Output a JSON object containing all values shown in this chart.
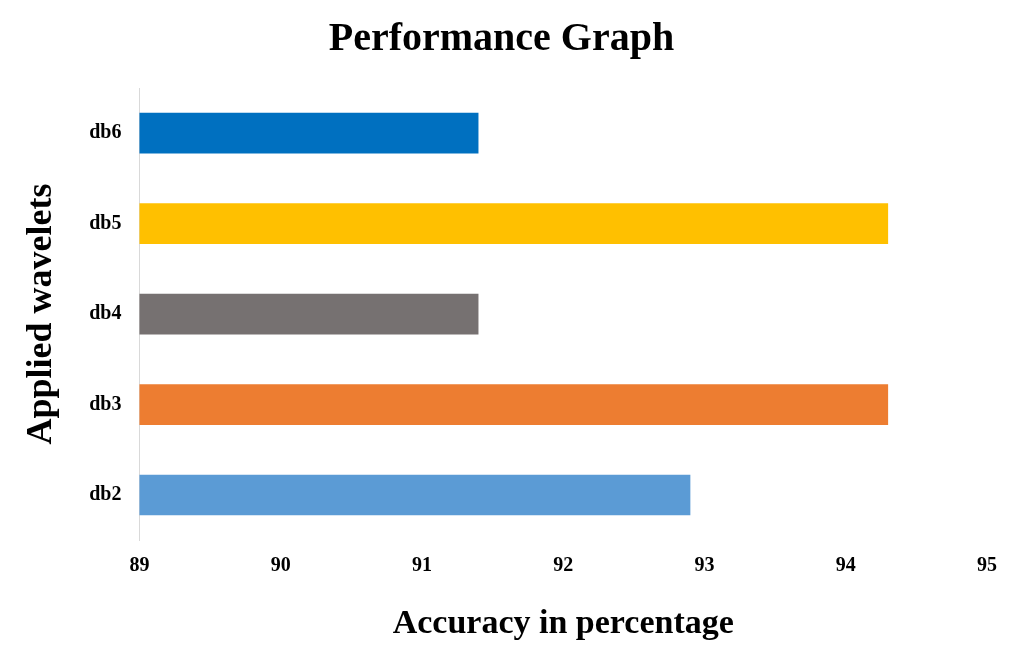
{
  "chart_data": {
    "type": "bar",
    "orientation": "horizontal",
    "title": "Performance Graph",
    "xlabel": "Accuracy in percentage",
    "ylabel": "Applied wavelets",
    "categories": [
      "db6",
      "db5",
      "db4",
      "db3",
      "db2"
    ],
    "values": [
      91.4,
      94.3,
      91.4,
      94.3,
      92.9
    ],
    "colors": [
      "#0070c0",
      "#ffc000",
      "#767171",
      "#ed7d31",
      "#5b9bd5"
    ],
    "xlim": [
      89,
      95
    ],
    "xticks": [
      89,
      90,
      91,
      92,
      93,
      94,
      95
    ],
    "grid": false,
    "legend": false
  }
}
